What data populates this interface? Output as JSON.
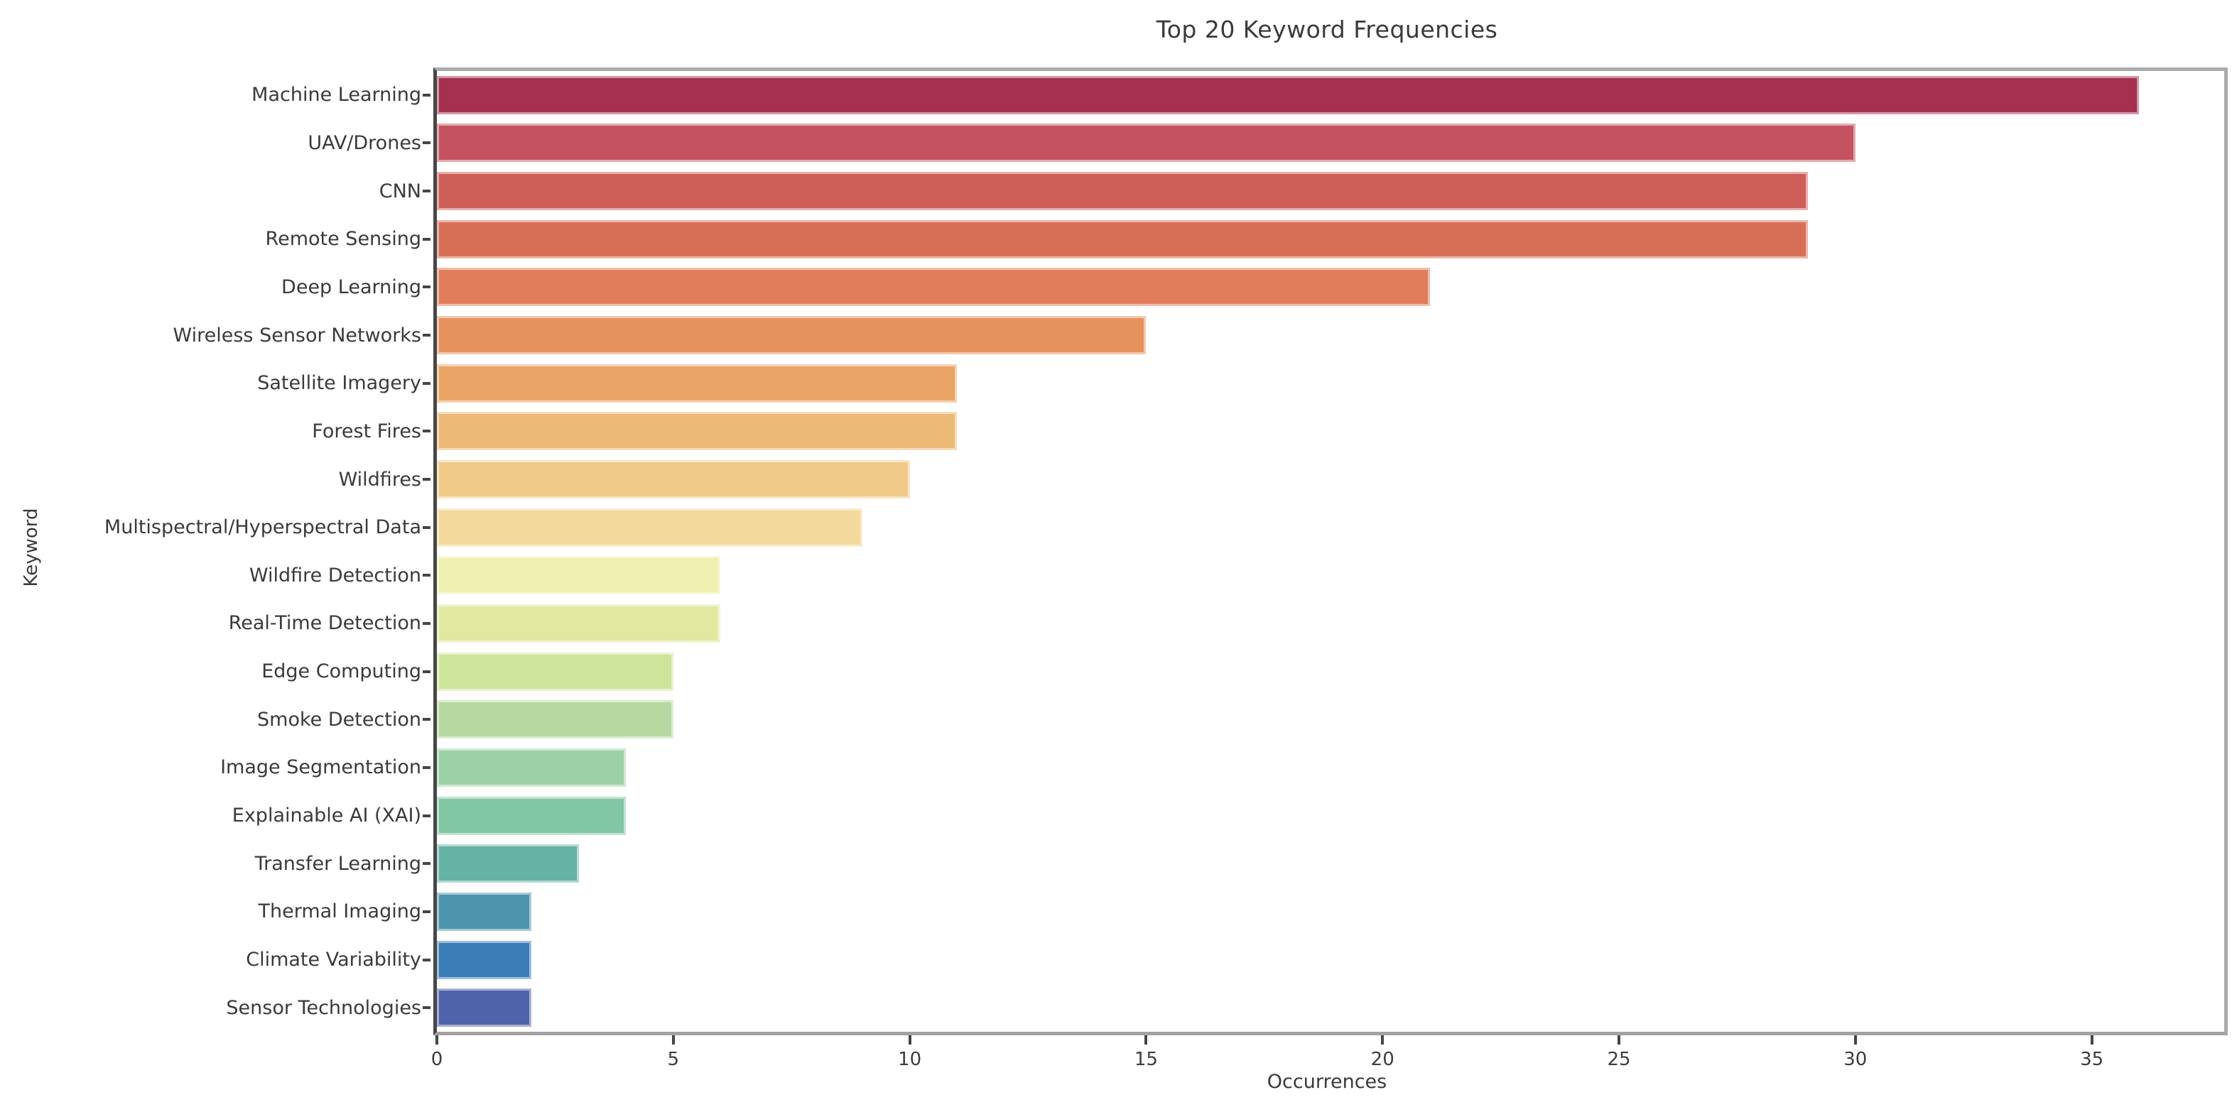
{
  "chart_data": {
    "type": "bar",
    "orientation": "horizontal",
    "title": "Top 20 Keyword Frequencies",
    "xlabel": "Occurrences",
    "ylabel": "Keyword",
    "categories": [
      "Machine Learning",
      "UAV/Drones",
      "CNN",
      "Remote Sensing",
      "Deep Learning",
      "Wireless Sensor Networks",
      "Satellite Imagery",
      "Forest Fires",
      "Wildfires",
      "Multispectral/Hyperspectral Data",
      "Wildfire Detection",
      "Real-Time Detection",
      "Edge Computing",
      "Smoke Detection",
      "Image Segmentation",
      "Explainable AI (XAI)",
      "Transfer Learning",
      "Thermal Imaging",
      "Climate Variability",
      "Sensor Technologies"
    ],
    "values": [
      36,
      30,
      29,
      29,
      21,
      15,
      11,
      11,
      10,
      9,
      6,
      6,
      5,
      5,
      4,
      4,
      3,
      2,
      2,
      2
    ],
    "bar_colors": [
      "#a63050",
      "#c45260",
      "#ce5f58",
      "#d76f57",
      "#e07e5c",
      "#e6925f",
      "#eaa566",
      "#edb977",
      "#f0ca89",
      "#f3d99b",
      "#eff0b1",
      "#e1e9a1",
      "#cfe49b",
      "#b6d9a1",
      "#9cd1a5",
      "#81c6a5",
      "#64b3a5",
      "#4d95ac",
      "#3c7cb7",
      "#4e63a9"
    ],
    "x_ticks": [
      0,
      5,
      10,
      15,
      20,
      25,
      30,
      35
    ],
    "xlim": [
      0,
      37.8
    ],
    "grid": false,
    "legend_position": "none",
    "colors": {
      "left_spine": "#474747",
      "frame_spines": "#ababab",
      "tick_mark": "#454545",
      "text": "#3a3a3a",
      "background": "#ffffff"
    }
  }
}
